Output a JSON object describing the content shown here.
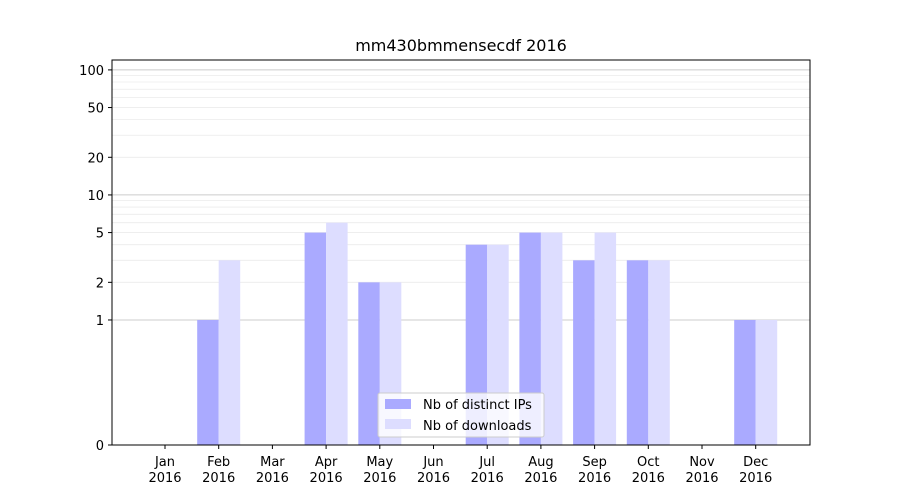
{
  "chart_data": {
    "type": "bar",
    "title": "mm430bmmensecdf 2016",
    "xlabel": "",
    "ylabel": "",
    "categories": [
      [
        "Jan",
        "2016"
      ],
      [
        "Feb",
        "2016"
      ],
      [
        "Mar",
        "2016"
      ],
      [
        "Apr",
        "2016"
      ],
      [
        "May",
        "2016"
      ],
      [
        "Jun",
        "2016"
      ],
      [
        "Jul",
        "2016"
      ],
      [
        "Aug",
        "2016"
      ],
      [
        "Sep",
        "2016"
      ],
      [
        "Oct",
        "2016"
      ],
      [
        "Nov",
        "2016"
      ],
      [
        "Dec",
        "2016"
      ]
    ],
    "series": [
      {
        "name": "Nb of distinct IPs",
        "color": "#aaaaff",
        "values": [
          0,
          1,
          0,
          5,
          2,
          0,
          4,
          5,
          3,
          3,
          0,
          1
        ]
      },
      {
        "name": "Nb of downloads",
        "color": "#ddddff",
        "values": [
          0,
          3,
          0,
          6,
          2,
          0,
          4,
          5,
          5,
          3,
          0,
          1
        ]
      }
    ],
    "y_scale": "symlog",
    "yticks": [
      0,
      1,
      2,
      5,
      10,
      20,
      50,
      100
    ],
    "ylim": [
      0,
      120
    ],
    "grid": true,
    "legend_position": "bottom-center"
  }
}
